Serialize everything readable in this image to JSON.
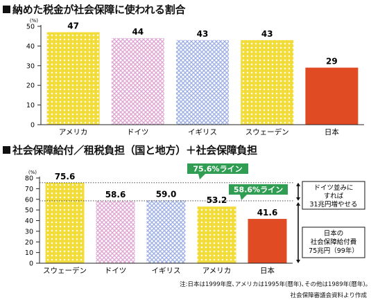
{
  "colors": {
    "yellow": "#f2dc3a",
    "pink": "#dfa6d4",
    "blue": "#9fb1e4",
    "japan": "#e04b24",
    "green_label": "#2f9e52"
  },
  "chart_data": [
    {
      "type": "bar",
      "title": "納めた税金が社会保障に使われる割合",
      "unit_label": "(%)",
      "categories": [
        "アメリカ",
        "ドイツ",
        "イギリス",
        "スウェーデン",
        "日本"
      ],
      "values": [
        47,
        44,
        43,
        43,
        29
      ],
      "value_labels": [
        "47",
        "44",
        "43",
        "43",
        "29"
      ],
      "bar_colors": [
        "yellow",
        "pink",
        "blue",
        "yellow",
        "japan"
      ],
      "ylim": [
        0,
        50
      ],
      "yticks": [
        0,
        10,
        20,
        30,
        40,
        50
      ],
      "grid": false
    },
    {
      "type": "bar",
      "title": "社会保障給付／租税負担（国と地方）＋社会保障負担",
      "unit_label": "(%)",
      "categories": [
        "スウェーデン",
        "ドイツ",
        "イギリス",
        "アメリカ",
        "日本"
      ],
      "values": [
        75.6,
        58.6,
        59.0,
        53.2,
        41.6
      ],
      "value_labels": [
        "75.6",
        "58.6",
        "59.0",
        "53.2",
        "41.6"
      ],
      "bar_colors": [
        "yellow",
        "pink",
        "blue",
        "yellow",
        "japan"
      ],
      "ylim": [
        0,
        80
      ],
      "yticks": [
        0,
        10,
        20,
        30,
        40,
        50,
        60,
        70,
        80
      ],
      "reference_lines": [
        {
          "value": 75.6,
          "label": "75.6%ライン"
        },
        {
          "value": 58.6,
          "label": "58.6%ライン"
        }
      ],
      "annotations": [
        {
          "lines": [
            "ドイツ並みに",
            "すれば",
            "31兆円増やせる"
          ]
        },
        {
          "lines": [
            "日本の",
            "社会保障給付費",
            "75兆円（99年）"
          ]
        }
      ],
      "grid": false
    }
  ],
  "notes": [
    "注:日本は1999年度､アメリカは1995年(暦年)､その他は1989年(暦年)｡",
    "社会保障審議会資料より作成"
  ]
}
